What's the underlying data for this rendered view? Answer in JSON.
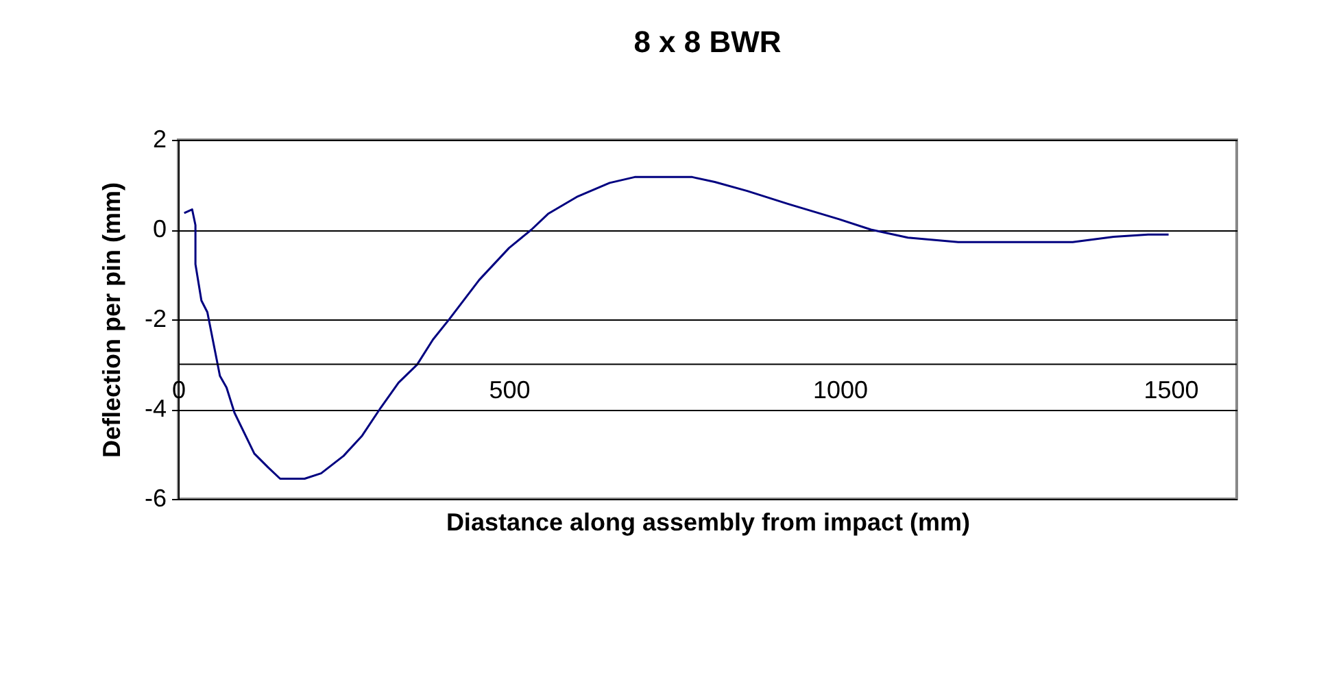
{
  "chart_data": {
    "type": "line",
    "title": "8 x 8 BWR",
    "xlabel": "Diastance along assembly from impact (mm)",
    "ylabel": "Deflection per pin (mm)",
    "x": [
      9,
      21,
      26,
      26,
      35,
      44,
      63,
      73,
      85,
      115,
      136,
      154,
      191,
      216,
      250,
      278,
      306,
      333,
      361,
      385,
      410,
      455,
      500,
      534,
      559,
      604,
      652,
      690,
      777,
      811,
      860,
      922,
      999,
      1047,
      1103,
      1179,
      1352,
      1414,
      1466,
      1497
    ],
    "series": [
      {
        "color": "#000080",
        "values": [
          0.37,
          0.45,
          0.1,
          -0.77,
          -1.58,
          -1.84,
          -3.26,
          -3.52,
          -4.08,
          -4.99,
          -5.3,
          -5.55,
          -5.55,
          -5.43,
          -5.04,
          -4.59,
          -3.97,
          -3.41,
          -3.01,
          -2.45,
          -1.99,
          -1.12,
          -0.41,
          0,
          0.35,
          0.74,
          1.04,
          1.17,
          1.17,
          1.06,
          0.86,
          0.57,
          0.23,
          0,
          -0.18,
          -0.28,
          -0.28,
          -0.16,
          -0.11,
          -0.11
        ]
      }
    ],
    "xlim": [
      0,
      1600
    ],
    "xticks": [
      0,
      500,
      1000,
      1500
    ],
    "ylim": [
      -6,
      2
    ],
    "yticks": [
      -6,
      -4,
      -2,
      0,
      2
    ],
    "ref_lines": [
      {
        "axis": "y",
        "value": -3
      }
    ],
    "grid": "y",
    "marker": "none",
    "line_style": "solid"
  }
}
